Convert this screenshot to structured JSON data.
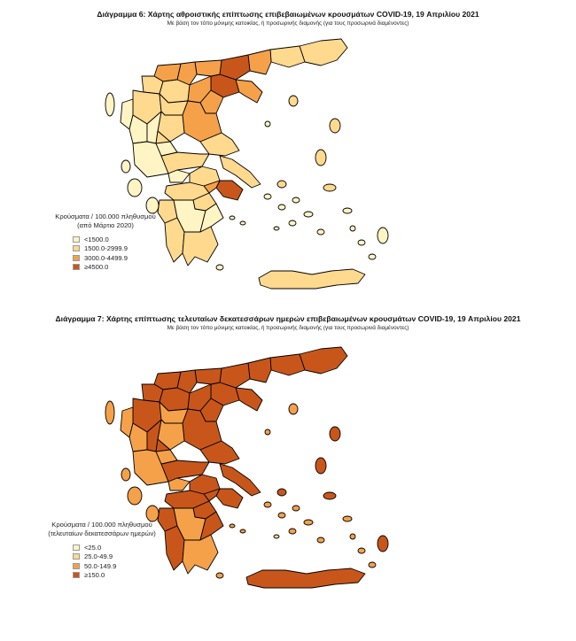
{
  "figures": [
    {
      "title": "Διάγραμμα 6: Χάρτης αθροιστικής επίπτωσης επιβεβαιωμένων κρουσμάτων COVID-19, 19 Απριλίου 2021",
      "subtitle": "Με βάση τον τόπο μόνιμης κατοικίας, ή προσωρινής διαμονής (για τους προσωρινά διαμένοντες)",
      "legend": {
        "title_line1": "Κρούσματα / 100.000 πληθυσμού",
        "title_line2": "(από Μάρτιο 2020)",
        "items": [
          {
            "label": "<1500.0",
            "color": "#fff4c4"
          },
          {
            "label": "1500.0-2999.9",
            "color": "#fed98e"
          },
          {
            "label": "3000.0-4499.9",
            "color": "#f5a14a"
          },
          {
            "label": "≥4500.0",
            "color": "#c8561a"
          }
        ]
      }
    },
    {
      "title": "Διάγραμμα 7: Χάρτης επίπτωσης τελευταίων δεκατεσσάρων ημερών επιβεβαιωμένων κρουσμάτων COVID-19, 19 Απριλίου 2021",
      "subtitle": "Με βάση τον τόπο μόνιμης κατοικίας, ή προσωρινής διαμονής (για τους προσωρινά διαμένοντες)",
      "legend": {
        "title_line1": "Κρούσματα / 100.000 πληθυσμού",
        "title_line2": "(τελευταίων δεκατεσσάρων ημερών)",
        "items": [
          {
            "label": "<25.0",
            "color": "#fff4c4"
          },
          {
            "label": "25.0-49.9",
            "color": "#fed98e"
          },
          {
            "label": "50.0-149.9",
            "color": "#f5a14a"
          },
          {
            "label": "≥150.0",
            "color": "#c8561a"
          }
        ]
      }
    }
  ]
}
